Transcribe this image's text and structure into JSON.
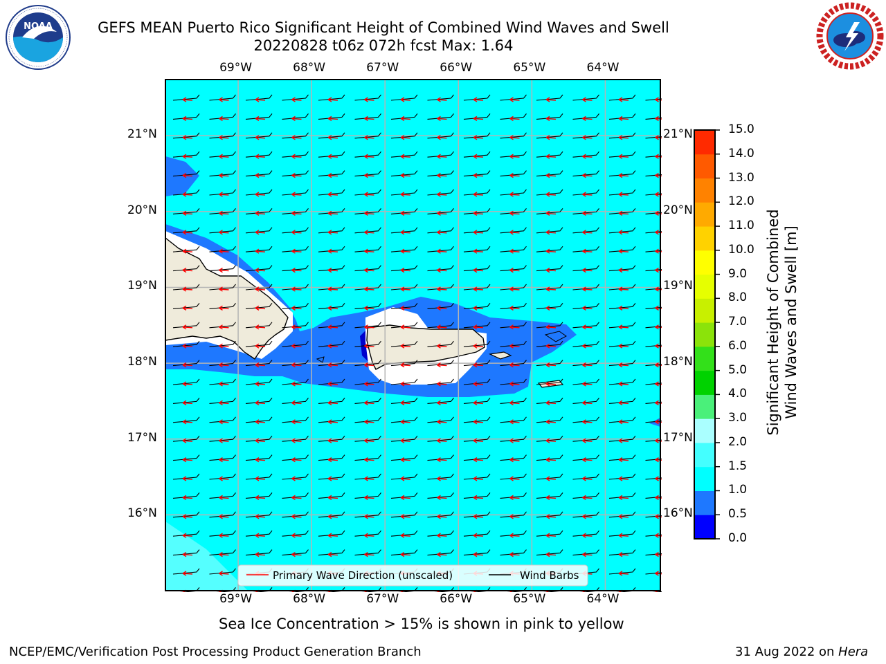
{
  "header": {
    "title_line1": "GEFS MEAN Puerto Rico Significant Height of Combined Wind Waves and Swell",
    "title_line2": "20220828 t06z 072h fcst   Max: 1.64"
  },
  "logos": {
    "noaa_text": "NOAA",
    "noaa_ring_text": "NATIONAL OCEANIC AND ATMOSPHERIC ADMINISTRATION · U.S. DEPARTMENT OF COMMERCE",
    "nws_ring_text": "NATIONAL WEATHER SERVICE",
    "noaa_icon": "noaa-logo-icon",
    "nws_icon": "nws-logo-icon"
  },
  "map": {
    "lon_labels": [
      "69°W",
      "68°W",
      "67°W",
      "66°W",
      "65°W",
      "64°W"
    ],
    "lat_labels": [
      "21°N",
      "20°N",
      "19°N",
      "18°N",
      "17°N",
      "16°N"
    ],
    "lon_range": [
      -70.0,
      -63.25
    ],
    "lat_range": [
      15.0,
      21.75
    ],
    "ocean_color": "#00ffff",
    "land_color": "#efebdb",
    "legend": {
      "wave_label": "Primary Wave Direction (unscaled)",
      "wave_color": "#ff0000",
      "barb_label": "Wind Barbs",
      "barb_color": "#000000"
    }
  },
  "colorbar": {
    "label_line1": "Significant Height of Combined",
    "label_line2": "Wind Waves and Swell [m]",
    "levels": [
      "0.0",
      "0.5",
      "1.0",
      "1.5",
      "2.0",
      "3.0",
      "4.0",
      "5.0",
      "6.0",
      "7.0",
      "8.0",
      "9.0",
      "10.0",
      "11.0",
      "12.0",
      "13.0",
      "14.0",
      "15.0"
    ],
    "colors": [
      "#0000ff",
      "#1e78ff",
      "#00ffff",
      "#44ffff",
      "#aaffff",
      "#4af07a",
      "#00d200",
      "#33e01a",
      "#8be30a",
      "#c8f000",
      "#e6ff00",
      "#ffff00",
      "#ffd200",
      "#ffaa00",
      "#ff8200",
      "#ff5a00",
      "#ff2a00"
    ]
  },
  "chart_data": {
    "type": "heatmap",
    "title": "GEFS MEAN Puerto Rico Significant Height of Combined Wind Waves and Swell",
    "subtitle": "20220828 t06z 072h fcst   Max: 1.64",
    "variable_label": "Significant Height of Combined Wind Waves and Swell [m]",
    "max_value": 1.64,
    "x_ticks": [
      "69°W",
      "68°W",
      "67°W",
      "66°W",
      "65°W",
      "64°W"
    ],
    "y_ticks": [
      "21°N",
      "20°N",
      "19°N",
      "18°N",
      "17°N",
      "16°N"
    ],
    "color_levels": [
      0.0,
      0.5,
      1.0,
      1.5,
      2.0,
      3.0,
      4.0,
      5.0,
      6.0,
      7.0,
      8.0,
      9.0,
      10.0,
      11.0,
      12.0,
      13.0,
      14.0,
      15.0
    ],
    "legend": [
      "Primary Wave Direction (unscaled)",
      "Wind Barbs"
    ]
  },
  "notes": {
    "sea_ice": "Sea Ice Concentration > 15% is shown in pink to yellow"
  },
  "footer": {
    "left": "NCEP/EMC/Verification Post Processing Product Generation Branch",
    "right_date": "31 Aug 2022 on ",
    "right_host": "Hera"
  }
}
